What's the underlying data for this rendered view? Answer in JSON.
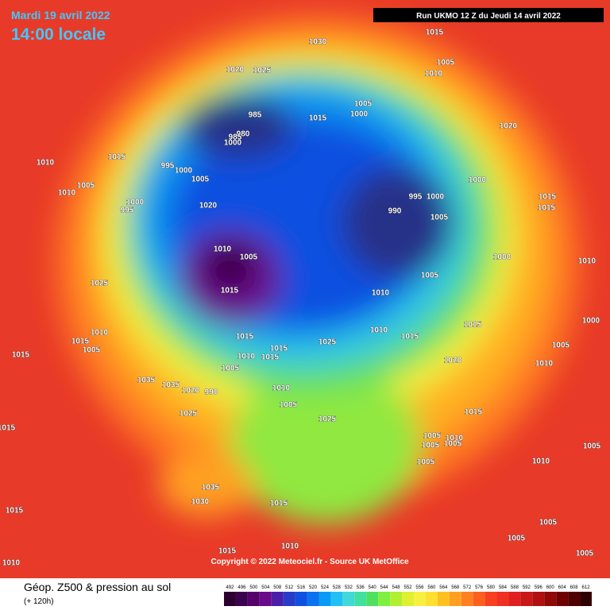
{
  "header": {
    "date": "Mardi 19 avril 2022",
    "time": "14:00 locale",
    "run": "Run UKMO 12 Z du Jeudi 14 avril 2022"
  },
  "footer": {
    "title": "Géop. Z500 & pression au sol",
    "subtitle": "(+ 120h)",
    "copyright": "Copyright © 2022 Meteociel.fr - Source UK MetOffice"
  },
  "colorbar": {
    "values": [
      492,
      496,
      500,
      504,
      508,
      512,
      516,
      520,
      524,
      528,
      532,
      536,
      540,
      544,
      548,
      552,
      556,
      560,
      564,
      568,
      572,
      576,
      580,
      584,
      588,
      592,
      596,
      600,
      604,
      608,
      612
    ],
    "colors": [
      "#2b0030",
      "#3c0050",
      "#55006b",
      "#6a0a8a",
      "#4b1fa8",
      "#2a3bc8",
      "#1050e0",
      "#0a72f0",
      "#0a9af5",
      "#20c0f5",
      "#40d8d8",
      "#40e0a0",
      "#50e060",
      "#80f040",
      "#b0f030",
      "#e0f030",
      "#f8f040",
      "#ffe030",
      "#ffc020",
      "#ffa020",
      "#ff8020",
      "#ff6020",
      "#f84020",
      "#f03020",
      "#e02020",
      "#c81818",
      "#b01010",
      "#900808",
      "#700000",
      "#500000",
      "#300000"
    ]
  },
  "isobar_labels": [
    "1030",
    "1015",
    "1020",
    "1025",
    "1005",
    "1010",
    "1005",
    "1000",
    "985",
    "1015",
    "980",
    "985",
    "1000",
    "1020",
    "1015",
    "1010",
    "995",
    "1000",
    "1005",
    "1005",
    "1000",
    "995",
    "1000",
    "1010",
    "1000",
    "995",
    "1020",
    "990",
    "1005",
    "1015",
    "1015",
    "1010",
    "1005",
    "1000",
    "1010",
    "1025",
    "1005",
    "1015",
    "1010",
    "1000",
    "1015",
    "1010",
    "1015",
    "1005",
    "1025",
    "1015",
    "1015",
    "1010",
    "1005",
    "1015",
    "1010",
    "1015",
    "1015",
    "1020",
    "1010",
    "1005",
    "1035",
    "1035",
    "1020",
    "990",
    "1010",
    "1005",
    "1025",
    "1015",
    "1015",
    "1025",
    "1005",
    "1010",
    "1005",
    "1005",
    "1005",
    "1005",
    "1010",
    "1035",
    "1030",
    "1015",
    "1015",
    "1005",
    "1005",
    "1015",
    "1010",
    "1010",
    "1005"
  ]
}
